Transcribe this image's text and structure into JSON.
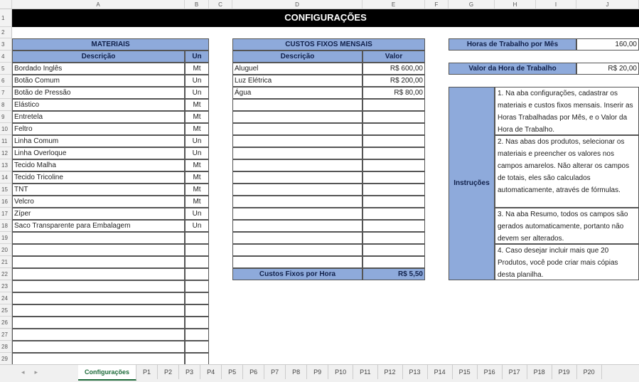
{
  "columns": [
    "A",
    "B",
    "C",
    "D",
    "E",
    "F",
    "G",
    "H",
    "I",
    "J"
  ],
  "title": "CONFIGURAÇÕES",
  "materiais": {
    "header": "MATERIAIS",
    "col_desc": "Descrição",
    "col_un": "Un",
    "items": [
      [
        "Bordado Inglês",
        "Mt"
      ],
      [
        "Botão Comum",
        "Un"
      ],
      [
        "Botão de Pressão",
        "Un"
      ],
      [
        "Elástico",
        "Mt"
      ],
      [
        "Entretela",
        "Mt"
      ],
      [
        "Feltro",
        "Mt"
      ],
      [
        "Linha Comum",
        "Un"
      ],
      [
        "Linha Overloque",
        "Un"
      ],
      [
        "Tecido Malha",
        "Mt"
      ],
      [
        "Tecido Tricoline",
        "Mt"
      ],
      [
        "TNT",
        "Mt"
      ],
      [
        "Velcro",
        "Mt"
      ],
      [
        "Zíper",
        "Un"
      ],
      [
        "Saco Transparente para Embalagem",
        "Un"
      ]
    ]
  },
  "custos": {
    "header": "CUSTOS FIXOS MENSAIS",
    "col_desc": "Descrição",
    "col_valor": "Valor",
    "items": [
      [
        "Aluguel",
        "R$ 600,00"
      ],
      [
        "Luz Elétrica",
        "R$ 200,00"
      ],
      [
        "Água",
        "R$ 80,00"
      ]
    ],
    "total_label": "Custos Fixos por Hora",
    "total_value": "R$ 5,50"
  },
  "horas": {
    "label": "Horas de Trabalho por Mês",
    "value": "160,00"
  },
  "valor_hora": {
    "label": "Valor da Hora de Trabalho",
    "value": "R$ 20,00"
  },
  "instrucoes": {
    "label": "Instruções",
    "steps": [
      "1. Na aba configurações, cadastrar os materiais e custos fixos mensais. Inserir as Horas Trabalhadas por Mês, e o Valor da Hora de Trabalho.",
      "2. Nas abas dos produtos, selecionar os materiais e preencher os valores nos campos amarelos. Não alterar os campos de totais, eles são calculados automaticamente, através de fórmulas.",
      "3. Na aba Resumo, todos os campos são gerados automaticamente, portanto não devem ser alterados.",
      "4. Caso desejar incluir mais que 20 Produtos, você pode criar mais cópias desta planilha."
    ]
  },
  "sheet_tabs": [
    "Configurações",
    "P1",
    "P2",
    "P3",
    "P4",
    "P5",
    "P6",
    "P7",
    "P8",
    "P9",
    "P10",
    "P11",
    "P12",
    "P13",
    "P14",
    "P15",
    "P16",
    "P17",
    "P18",
    "P19",
    "P20"
  ],
  "active_tab": "Configurações",
  "colors": {
    "header_blue": "#8eaadb",
    "title_bar": "#000000",
    "active_tab": "#1e6b3a"
  }
}
